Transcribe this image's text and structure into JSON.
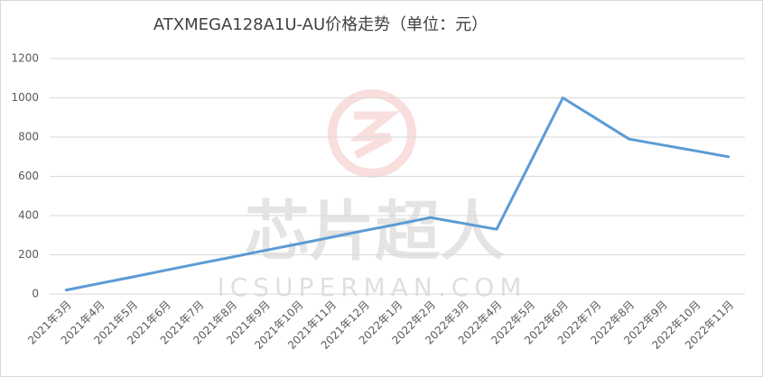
{
  "chart_data": {
    "type": "line",
    "title": "ATXMEGA128A1U-AU价格走势（单位：元）",
    "watermark": "芯片超人",
    "watermark_sub": "ICSUPERMAN.COM",
    "categories": [
      "2021年3月",
      "2021年4月",
      "2021年5月",
      "2021年6月",
      "2021年7月",
      "2021年8月",
      "2021年9月",
      "2021年10月",
      "2021年11月",
      "2021年12月",
      "2022年1月",
      "2022年2月",
      "2022年3月",
      "2022年4月",
      "2022年5月",
      "2022年6月",
      "2022年7月",
      "2022年8月",
      "2022年9月",
      "2022年10月",
      "2022年11月"
    ],
    "values": [
      20,
      54,
      87,
      121,
      155,
      188,
      222,
      255,
      289,
      323,
      356,
      390,
      360,
      330,
      665,
      1000,
      895,
      790,
      760,
      730,
      700
    ],
    "color": "#5b9bd5",
    "ylim": [
      0,
      1200
    ],
    "yticks": [
      0,
      200,
      400,
      600,
      800,
      1000,
      1200
    ],
    "grid": true
  }
}
